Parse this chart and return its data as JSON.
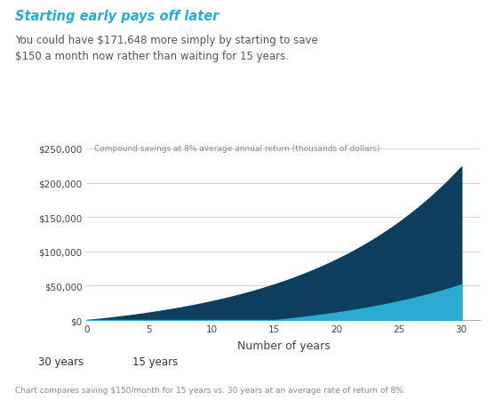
{
  "title": "Starting early pays off later",
  "subtitle": "You could have $171,648 more simply by starting to save\n$150 a month now rather than waiting for 15 years.",
  "annotation": "Compound savings at 8% average annual return (thousands of dollars)",
  "xlabel": "Number of years",
  "footnote": "Chart compares saving $150/month for 15 years vs. 30 years at an average rate of return of 8%.",
  "legend_30": "30 years",
  "legend_15": "15 years",
  "monthly_payment": 150,
  "annual_rate": 0.08,
  "total_years": 30,
  "delayed_years": 15,
  "color_30": "#0c3f5e",
  "color_15": "#2aabd2",
  "title_color": "#2aabd2",
  "subtitle_color": "#555555",
  "annotation_color": "#888888",
  "footnote_color": "#888888",
  "background_color": "#ffffff",
  "ytick_labels": [
    "$0",
    "$50,000",
    "$100,000",
    "$150,000",
    "$200,000",
    "$250,000"
  ],
  "ytick_values": [
    0,
    50000,
    100000,
    150000,
    200000,
    250000
  ],
  "xtick_values": [
    0,
    5,
    10,
    15,
    20,
    25,
    30
  ],
  "ylim": [
    0,
    265000
  ],
  "xlim": [
    0,
    31.5
  ]
}
